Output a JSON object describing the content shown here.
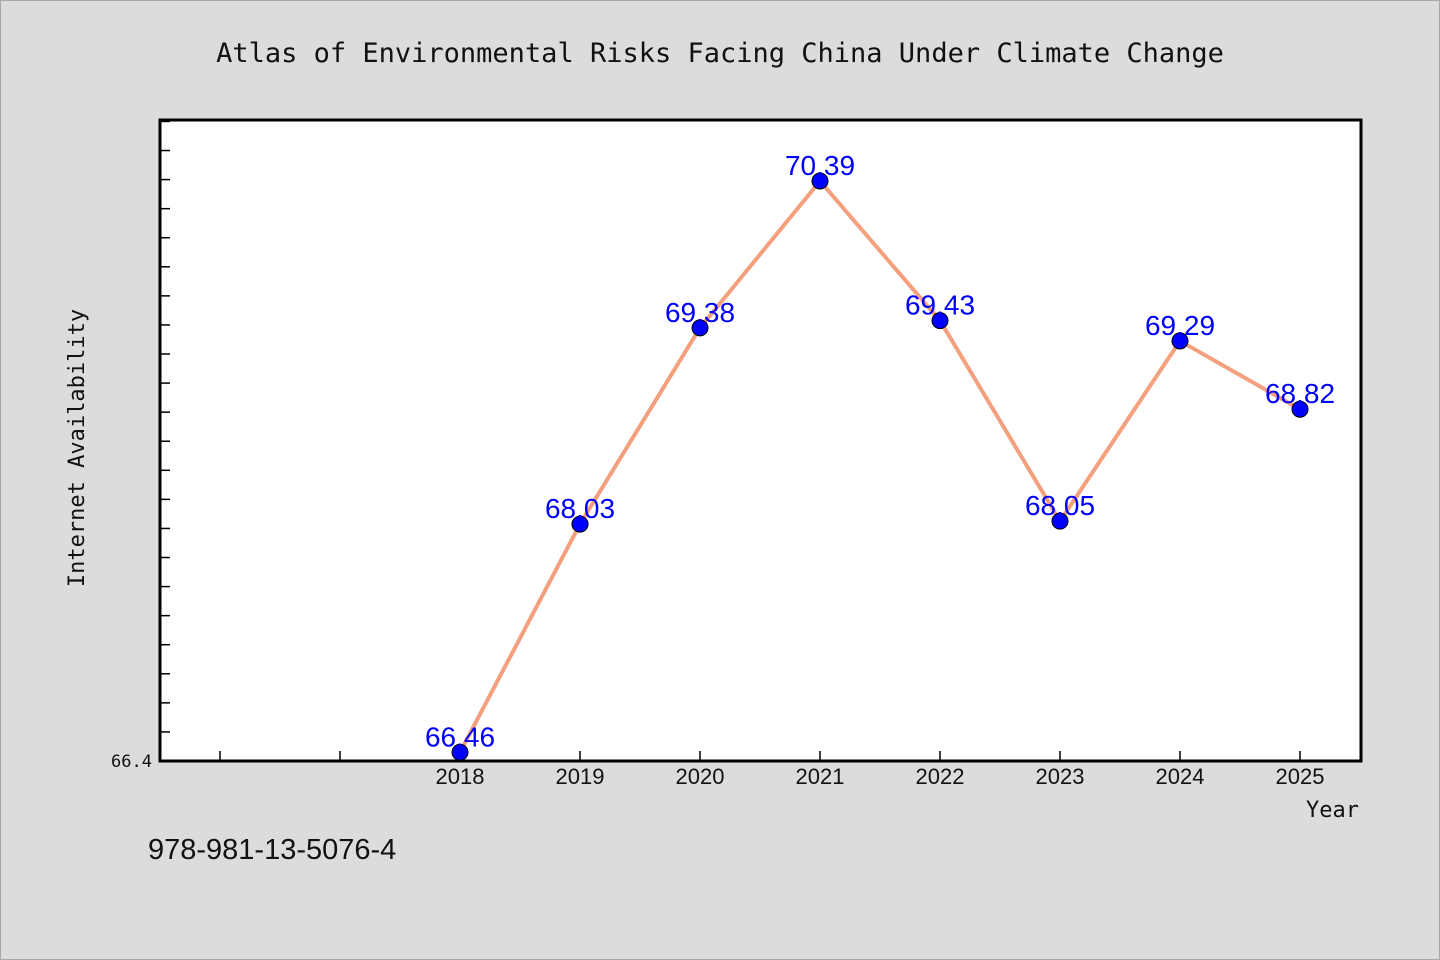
{
  "chart_data": {
    "type": "line",
    "title": "Atlas of Environmental Risks Facing China Under Climate Change",
    "xlabel": "Year",
    "ylabel": "Internet Availability",
    "categories": [
      "2018",
      "2019",
      "2020",
      "2021",
      "2022",
      "2023",
      "2024",
      "2025"
    ],
    "x_extra_slots": 2,
    "series": [
      {
        "values": [
          66.46,
          68.03,
          69.38,
          70.39,
          69.43,
          68.05,
          69.29,
          68.82
        ],
        "labels": [
          "66.46",
          "68.03",
          "69.38",
          "70.39",
          "69.43",
          "68.05",
          "69.29",
          "68.82"
        ]
      }
    ],
    "ylim": [
      66.4,
      70.81
    ],
    "y_tick_label": "66.4",
    "y_minor_step": 0.2,
    "grid": false,
    "legend": "none",
    "colors": {
      "line": "#f4a07e",
      "marker": "#0000ff",
      "data_label": "#0000ff",
      "plot_bg": "#ffffff",
      "page_bg": "#dcdcdc"
    }
  },
  "footer": {
    "code": "978-981-13-5076-4"
  }
}
